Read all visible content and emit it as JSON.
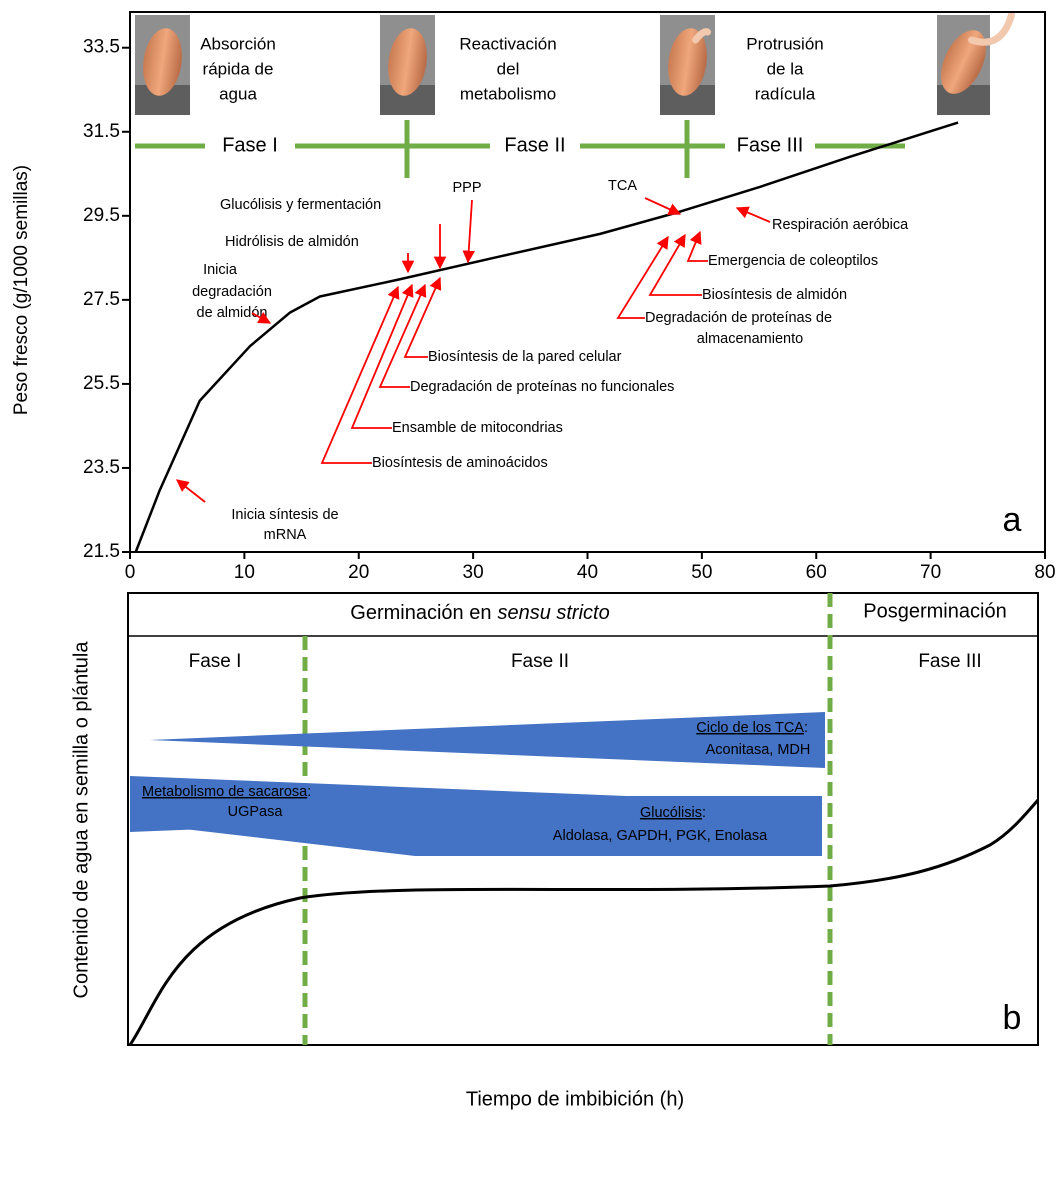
{
  "chart_data": {
    "type": "line",
    "y_label": "Peso fresco (g/1000 semillas)",
    "x_label": "Tiempo de imbibición (h)",
    "panel_label": "a",
    "color": "#000000",
    "x": [
      0.5,
      2.6,
      6.1,
      10.5,
      14,
      16.6,
      23.6,
      32.3,
      41.1,
      48.1,
      55.1,
      62.9,
      72.4
    ],
    "values": [
      21.5,
      22.97,
      25.1,
      26.4,
      27.2,
      27.58,
      27.99,
      28.53,
      29.07,
      29.6,
      30.19,
      30.9,
      31.72
    ],
    "xlim": [
      0,
      80
    ],
    "xticks": [
      0,
      10,
      20,
      30,
      40,
      50,
      60,
      70,
      80
    ],
    "ylim": [
      21.5,
      34.35
    ],
    "yticks": [
      21.5,
      23.5,
      25.5,
      27.5,
      29.5,
      31.5,
      33.5
    ],
    "phases": [
      "Fase I",
      "Fase II",
      "Fase III"
    ],
    "stage_captions": [
      [
        "Absorción",
        "rápida de",
        "agua"
      ],
      [
        "Reactivación",
        "del",
        "metabolismo"
      ],
      [
        "Protrusión",
        "de la",
        "radícula"
      ]
    ],
    "annotations": [
      {
        "lines": [
          "Inicia síntesis de",
          "mRNA"
        ]
      },
      {
        "lines": [
          "Inicia",
          "degradación",
          "de almidón"
        ]
      },
      {
        "lines": [
          "Hidrólisis de almidón"
        ]
      },
      {
        "lines": [
          "Glucólisis y fermentación"
        ]
      },
      {
        "lines": [
          "PPP"
        ]
      },
      {
        "lines": [
          "Biosíntesis de la pared celular"
        ]
      },
      {
        "lines": [
          "Degradación de proteínas no funcionales"
        ]
      },
      {
        "lines": [
          "Ensamble de mitocondrias"
        ]
      },
      {
        "lines": [
          "Biosíntesis de aminoácidos"
        ]
      },
      {
        "lines": [
          "TCA"
        ]
      },
      {
        "lines": [
          "Respiración aeróbica"
        ]
      },
      {
        "lines": [
          "Emergencia de coleoptilos"
        ]
      },
      {
        "lines": [
          "Biosíntesis de almidón"
        ]
      },
      {
        "lines": [
          "Degradación de proteínas de",
          "almacenamiento"
        ]
      }
    ]
  },
  "panel_b": {
    "panel_label": "b",
    "y_label": "Contenido de agua en semilla o plántula",
    "header": {
      "left": "Germinación en",
      "left_italic": "sensu stricto",
      "right": "Posgerminación"
    },
    "phases": [
      "Fase I",
      "Fase II",
      "Fase III"
    ],
    "pathways": [
      {
        "name": "Ciclo de los TCA",
        "colon": ":",
        "enzymes": "Aconitasa, MDH"
      },
      {
        "name": "Metabolismo de sacarosa",
        "colon": ":",
        "enzymes": "UGPasa"
      },
      {
        "name": "Glucólisis",
        "colon": ":",
        "enzymes": "Aldolasa, GAPDH, PGK, Enolasa"
      }
    ]
  }
}
